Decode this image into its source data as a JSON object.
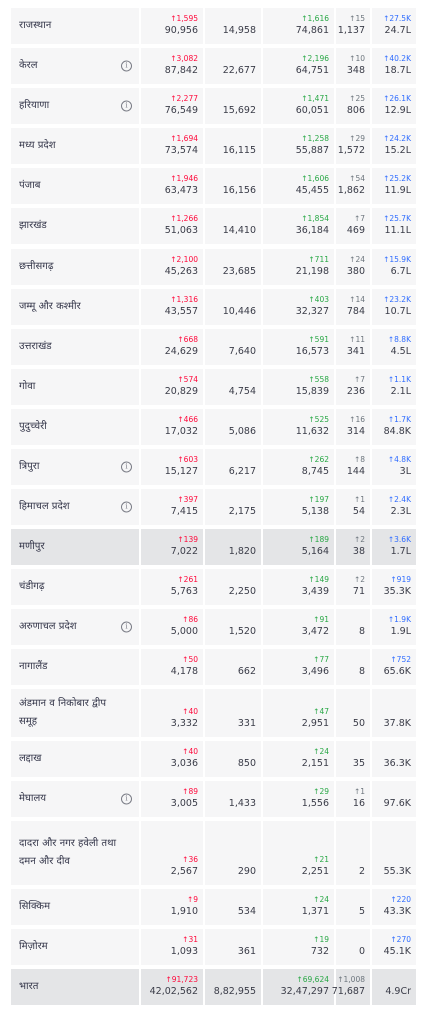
{
  "colors": {
    "confirmed_delta": "#ff073a",
    "recovered_delta": "#28a745",
    "deceased_delta": "#6c757d",
    "tested_delta": "#2f6cff",
    "row_bg": "#f6f6f7",
    "highlight_bg": "#e4e5e7"
  },
  "icons": {
    "info": "info-icon"
  },
  "rows": [
    {
      "state": "राजस्थान",
      "info": false,
      "confirmed_delta": "↑1,595",
      "confirmed": "90,956",
      "active": "14,958",
      "recovered_delta": "↑1,616",
      "recovered": "74,861",
      "deceased_delta": "↑15",
      "deceased": "1,137",
      "tested_delta": "↑27.5K",
      "tested": "24.7L"
    },
    {
      "state": "केरल",
      "info": true,
      "confirmed_delta": "↑3,082",
      "confirmed": "87,842",
      "active": "22,677",
      "recovered_delta": "↑2,196",
      "recovered": "64,751",
      "deceased_delta": "↑10",
      "deceased": "348",
      "tested_delta": "↑40.2K",
      "tested": "18.7L"
    },
    {
      "state": "हरियाणा",
      "info": true,
      "confirmed_delta": "↑2,277",
      "confirmed": "76,549",
      "active": "15,692",
      "recovered_delta": "↑1,471",
      "recovered": "60,051",
      "deceased_delta": "↑25",
      "deceased": "806",
      "tested_delta": "↑26.1K",
      "tested": "12.9L"
    },
    {
      "state": "मध्य प्रदेश",
      "info": false,
      "confirmed_delta": "↑1,694",
      "confirmed": "73,574",
      "active": "16,115",
      "recovered_delta": "↑1,258",
      "recovered": "55,887",
      "deceased_delta": "↑29",
      "deceased": "1,572",
      "tested_delta": "↑24.2K",
      "tested": "15.2L"
    },
    {
      "state": "पंजाब",
      "info": false,
      "confirmed_delta": "↑1,946",
      "confirmed": "63,473",
      "active": "16,156",
      "recovered_delta": "↑1,606",
      "recovered": "45,455",
      "deceased_delta": "↑54",
      "deceased": "1,862",
      "tested_delta": "↑25.2K",
      "tested": "11.9L"
    },
    {
      "state": "झारखंड",
      "info": false,
      "confirmed_delta": "↑1,266",
      "confirmed": "51,063",
      "active": "14,410",
      "recovered_delta": "↑1,854",
      "recovered": "36,184",
      "deceased_delta": "↑7",
      "deceased": "469",
      "tested_delta": "↑25.7K",
      "tested": "11.1L"
    },
    {
      "state": "छत्तीसगढ़",
      "info": false,
      "confirmed_delta": "↑2,100",
      "confirmed": "45,263",
      "active": "23,685",
      "recovered_delta": "↑711",
      "recovered": "21,198",
      "deceased_delta": "↑24",
      "deceased": "380",
      "tested_delta": "↑15.9K",
      "tested": "6.7L"
    },
    {
      "state": "जम्मू और कश्मीर",
      "info": false,
      "confirmed_delta": "↑1,316",
      "confirmed": "43,557",
      "active": "10,446",
      "recovered_delta": "↑403",
      "recovered": "32,327",
      "deceased_delta": "↑14",
      "deceased": "784",
      "tested_delta": "↑23.2K",
      "tested": "10.7L"
    },
    {
      "state": "उत्तराखंड",
      "info": false,
      "confirmed_delta": "↑668",
      "confirmed": "24,629",
      "active": "7,640",
      "recovered_delta": "↑591",
      "recovered": "16,573",
      "deceased_delta": "↑11",
      "deceased": "341",
      "tested_delta": "↑8.8K",
      "tested": "4.5L"
    },
    {
      "state": "गोवा",
      "info": false,
      "confirmed_delta": "↑574",
      "confirmed": "20,829",
      "active": "4,754",
      "recovered_delta": "↑558",
      "recovered": "15,839",
      "deceased_delta": "↑7",
      "deceased": "236",
      "tested_delta": "↑1.1K",
      "tested": "2.1L"
    },
    {
      "state": "पुदुच्चेरी",
      "info": false,
      "confirmed_delta": "↑466",
      "confirmed": "17,032",
      "active": "5,086",
      "recovered_delta": "↑525",
      "recovered": "11,632",
      "deceased_delta": "↑16",
      "deceased": "314",
      "tested_delta": "↑1.7K",
      "tested": "84.8K"
    },
    {
      "state": "त्रिपुरा",
      "info": true,
      "confirmed_delta": "↑603",
      "confirmed": "15,127",
      "active": "6,217",
      "recovered_delta": "↑262",
      "recovered": "8,745",
      "deceased_delta": "↑8",
      "deceased": "144",
      "tested_delta": "↑4.8K",
      "tested": "3L"
    },
    {
      "state": "हिमाचल प्रदेश",
      "info": true,
      "confirmed_delta": "↑397",
      "confirmed": "7,415",
      "active": "2,175",
      "recovered_delta": "↑197",
      "recovered": "5,138",
      "deceased_delta": "↑1",
      "deceased": "54",
      "tested_delta": "↑2.4K",
      "tested": "2.3L"
    },
    {
      "state": "मणीपुर",
      "info": false,
      "highlight": true,
      "confirmed_delta": "↑139",
      "confirmed": "7,022",
      "active": "1,820",
      "recovered_delta": "↑189",
      "recovered": "5,164",
      "deceased_delta": "↑2",
      "deceased": "38",
      "tested_delta": "↑3.6K",
      "tested": "1.7L"
    },
    {
      "state": "चंडीगढ़",
      "info": false,
      "confirmed_delta": "↑261",
      "confirmed": "5,763",
      "active": "2,250",
      "recovered_delta": "↑149",
      "recovered": "3,439",
      "deceased_delta": "↑2",
      "deceased": "71",
      "tested_delta": "↑919",
      "tested": "35.3K"
    },
    {
      "state": "अरुणाचल प्रदेश",
      "info": true,
      "confirmed_delta": "↑86",
      "confirmed": "5,000",
      "active": "1,520",
      "recovered_delta": "↑91",
      "recovered": "3,472",
      "deceased_delta": "",
      "deceased": "8",
      "tested_delta": "↑1.9K",
      "tested": "1.9L"
    },
    {
      "state": "नागालैंड",
      "info": false,
      "confirmed_delta": "↑50",
      "confirmed": "4,178",
      "active": "662",
      "recovered_delta": "↑77",
      "recovered": "3,496",
      "deceased_delta": "",
      "deceased": "8",
      "tested_delta": "↑752",
      "tested": "65.6K"
    },
    {
      "state": "अंडमान व निकोबार द्वीप समूह",
      "info": false,
      "confirmed_delta": "↑40",
      "confirmed": "3,332",
      "active": "331",
      "recovered_delta": "↑47",
      "recovered": "2,951",
      "deceased_delta": "",
      "deceased": "50",
      "tested_delta": "",
      "tested": "37.8K"
    },
    {
      "state": "लद्दाख",
      "info": false,
      "confirmed_delta": "↑40",
      "confirmed": "3,036",
      "active": "850",
      "recovered_delta": "↑24",
      "recovered": "2,151",
      "deceased_delta": "",
      "deceased": "35",
      "tested_delta": "",
      "tested": "36.3K"
    },
    {
      "state": "मेघालय",
      "info": true,
      "confirmed_delta": "↑89",
      "confirmed": "3,005",
      "active": "1,433",
      "recovered_delta": "↑29",
      "recovered": "1,556",
      "deceased_delta": "↑1",
      "deceased": "16",
      "tested_delta": "",
      "tested": "97.6K"
    },
    {
      "state": "दादरा और नगर हवेली तथा दमन और दीव",
      "info": false,
      "confirmed_delta": "↑36",
      "confirmed": "2,567",
      "active": "290",
      "recovered_delta": "↑21",
      "recovered": "2,251",
      "deceased_delta": "",
      "deceased": "2",
      "tested_delta": "",
      "tested": "55.3K"
    },
    {
      "state": "सिक्किम",
      "info": false,
      "confirmed_delta": "↑9",
      "confirmed": "1,910",
      "active": "534",
      "recovered_delta": "↑24",
      "recovered": "1,371",
      "deceased_delta": "",
      "deceased": "5",
      "tested_delta": "↑220",
      "tested": "43.3K"
    },
    {
      "state": "मिज़ोरम",
      "info": false,
      "confirmed_delta": "↑31",
      "confirmed": "1,093",
      "active": "361",
      "recovered_delta": "↑19",
      "recovered": "732",
      "deceased_delta": "",
      "deceased": "0",
      "tested_delta": "↑270",
      "tested": "45.1K"
    },
    {
      "state": "भारत",
      "info": false,
      "highlight": true,
      "confirmed_delta": "↑91,723",
      "confirmed": "42,02,562",
      "active": "8,82,955",
      "recovered_delta": "↑69,624",
      "recovered": "32,47,297",
      "deceased_delta": "↑1,008",
      "deceased": "71,687",
      "tested_delta": "",
      "tested": "4.9Cr"
    }
  ]
}
